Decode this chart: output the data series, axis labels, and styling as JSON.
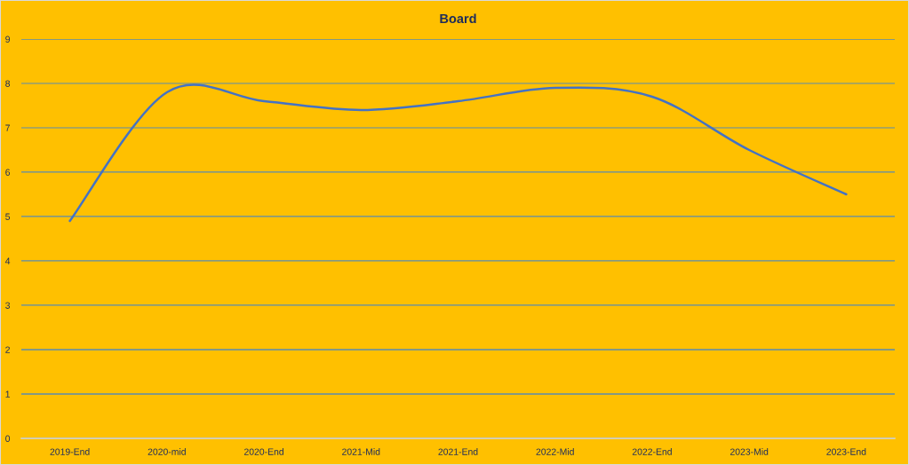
{
  "chart_data": {
    "type": "line",
    "title": "Board",
    "categories": [
      "2019-End",
      "2020-mid",
      "2020-End",
      "2021-Mid",
      "2021-End",
      "2022-Mid",
      "2022-End",
      "2023-Mid",
      "2023-End"
    ],
    "series": [
      {
        "color": "#4472c4",
        "values": [
          4.9,
          7.8,
          7.6,
          7.4,
          7.6,
          7.9,
          7.7,
          6.5,
          5.5
        ]
      }
    ],
    "ylim": [
      0,
      9
    ],
    "yticks": [
      0,
      1,
      2,
      3,
      4,
      5,
      6,
      7,
      8,
      9
    ],
    "grid": "y",
    "line_style": "solid"
  }
}
